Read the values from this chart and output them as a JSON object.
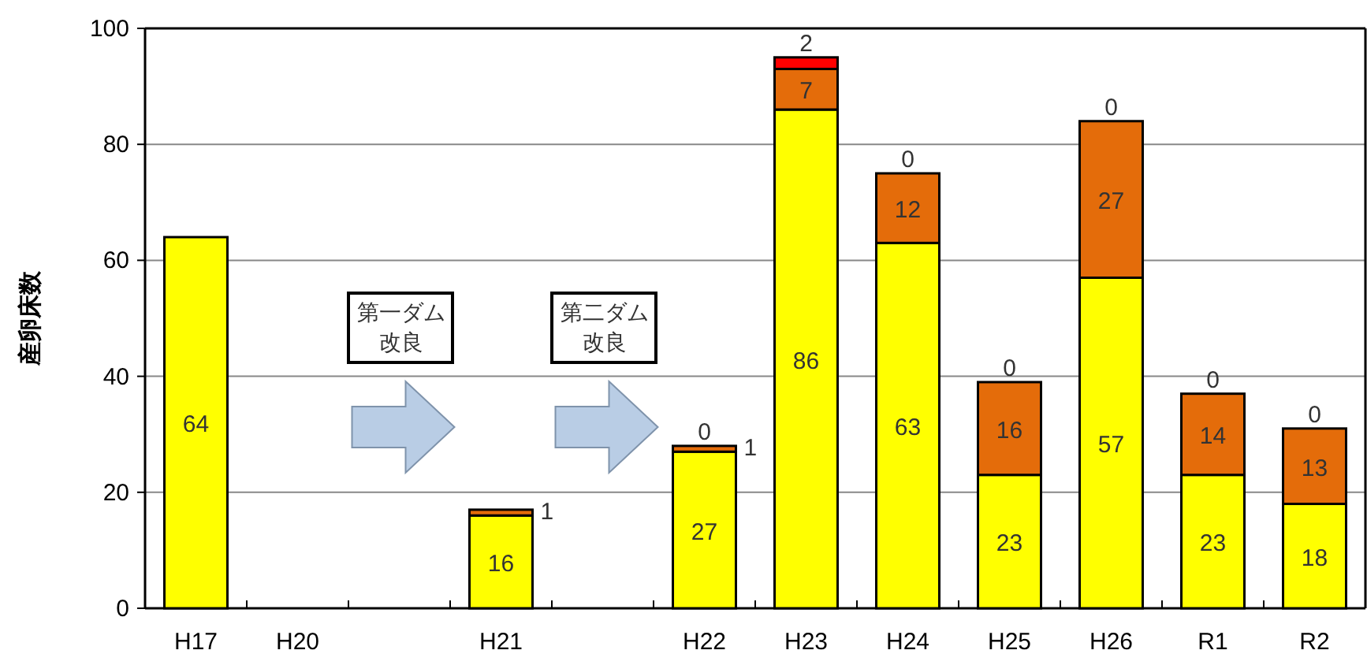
{
  "chart_data": {
    "type": "bar",
    "stacked": true,
    "ylabel": "産卵床数",
    "categories": [
      "H17",
      "H20",
      null,
      "H21",
      null,
      "H22",
      "H23",
      "H24",
      "H25",
      "H26",
      "R1",
      "R2"
    ],
    "series": [
      {
        "color": "#ffff00",
        "values": [
          64,
          null,
          null,
          16,
          null,
          27,
          86,
          63,
          23,
          57,
          23,
          18
        ],
        "value_labels": [
          "64",
          null,
          null,
          "16",
          null,
          "27",
          "86",
          "63",
          "23",
          "57",
          "23",
          "18"
        ]
      },
      {
        "color": "#e46c0a",
        "values": [
          null,
          null,
          null,
          1,
          null,
          1,
          7,
          12,
          16,
          27,
          14,
          13
        ],
        "value_labels": [
          null,
          null,
          null,
          "1",
          null,
          "1",
          "7",
          "12",
          "16",
          "27",
          "14",
          "13"
        ]
      },
      {
        "color": "#ff0000",
        "values": [
          null,
          null,
          null,
          null,
          null,
          0,
          2,
          0,
          0,
          0,
          0,
          0
        ],
        "value_labels": [
          null,
          null,
          null,
          null,
          null,
          "0",
          "2",
          "0",
          "0",
          "0",
          "0",
          "0"
        ]
      }
    ],
    "ylim": [
      0,
      100
    ],
    "yticks": [
      0,
      20,
      40,
      60,
      80,
      100
    ],
    "grid": "y",
    "annotations": [
      "第一ダム改良",
      "第二ダム改良"
    ]
  }
}
